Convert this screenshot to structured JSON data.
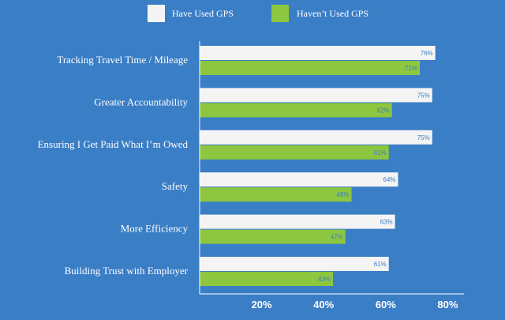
{
  "chart_data": {
    "type": "bar",
    "orientation": "horizontal",
    "categories": [
      "Tracking Travel Time / Mileage",
      "Greater Accountability",
      "Ensuring I Get Paid What I’m Owed",
      "Safety",
      "More Efficiency",
      "Building Trust with Employer"
    ],
    "series": [
      {
        "name": "Have Used GPS",
        "color": "#f4f4f4",
        "values": [
          76,
          75,
          75,
          64,
          63,
          61
        ]
      },
      {
        "name": "Haven’t Used GPS",
        "color": "#8dc63f",
        "values": [
          71,
          62,
          61,
          49,
          47,
          43
        ]
      }
    ],
    "ticks": [
      "20%",
      "40%",
      "60%",
      "80%"
    ],
    "tick_values": [
      20,
      40,
      60,
      80
    ],
    "xlim": [
      0,
      85
    ],
    "legend_position": "top",
    "value_suffix": "%",
    "grid": false,
    "background_color": "#3a7ec6"
  }
}
